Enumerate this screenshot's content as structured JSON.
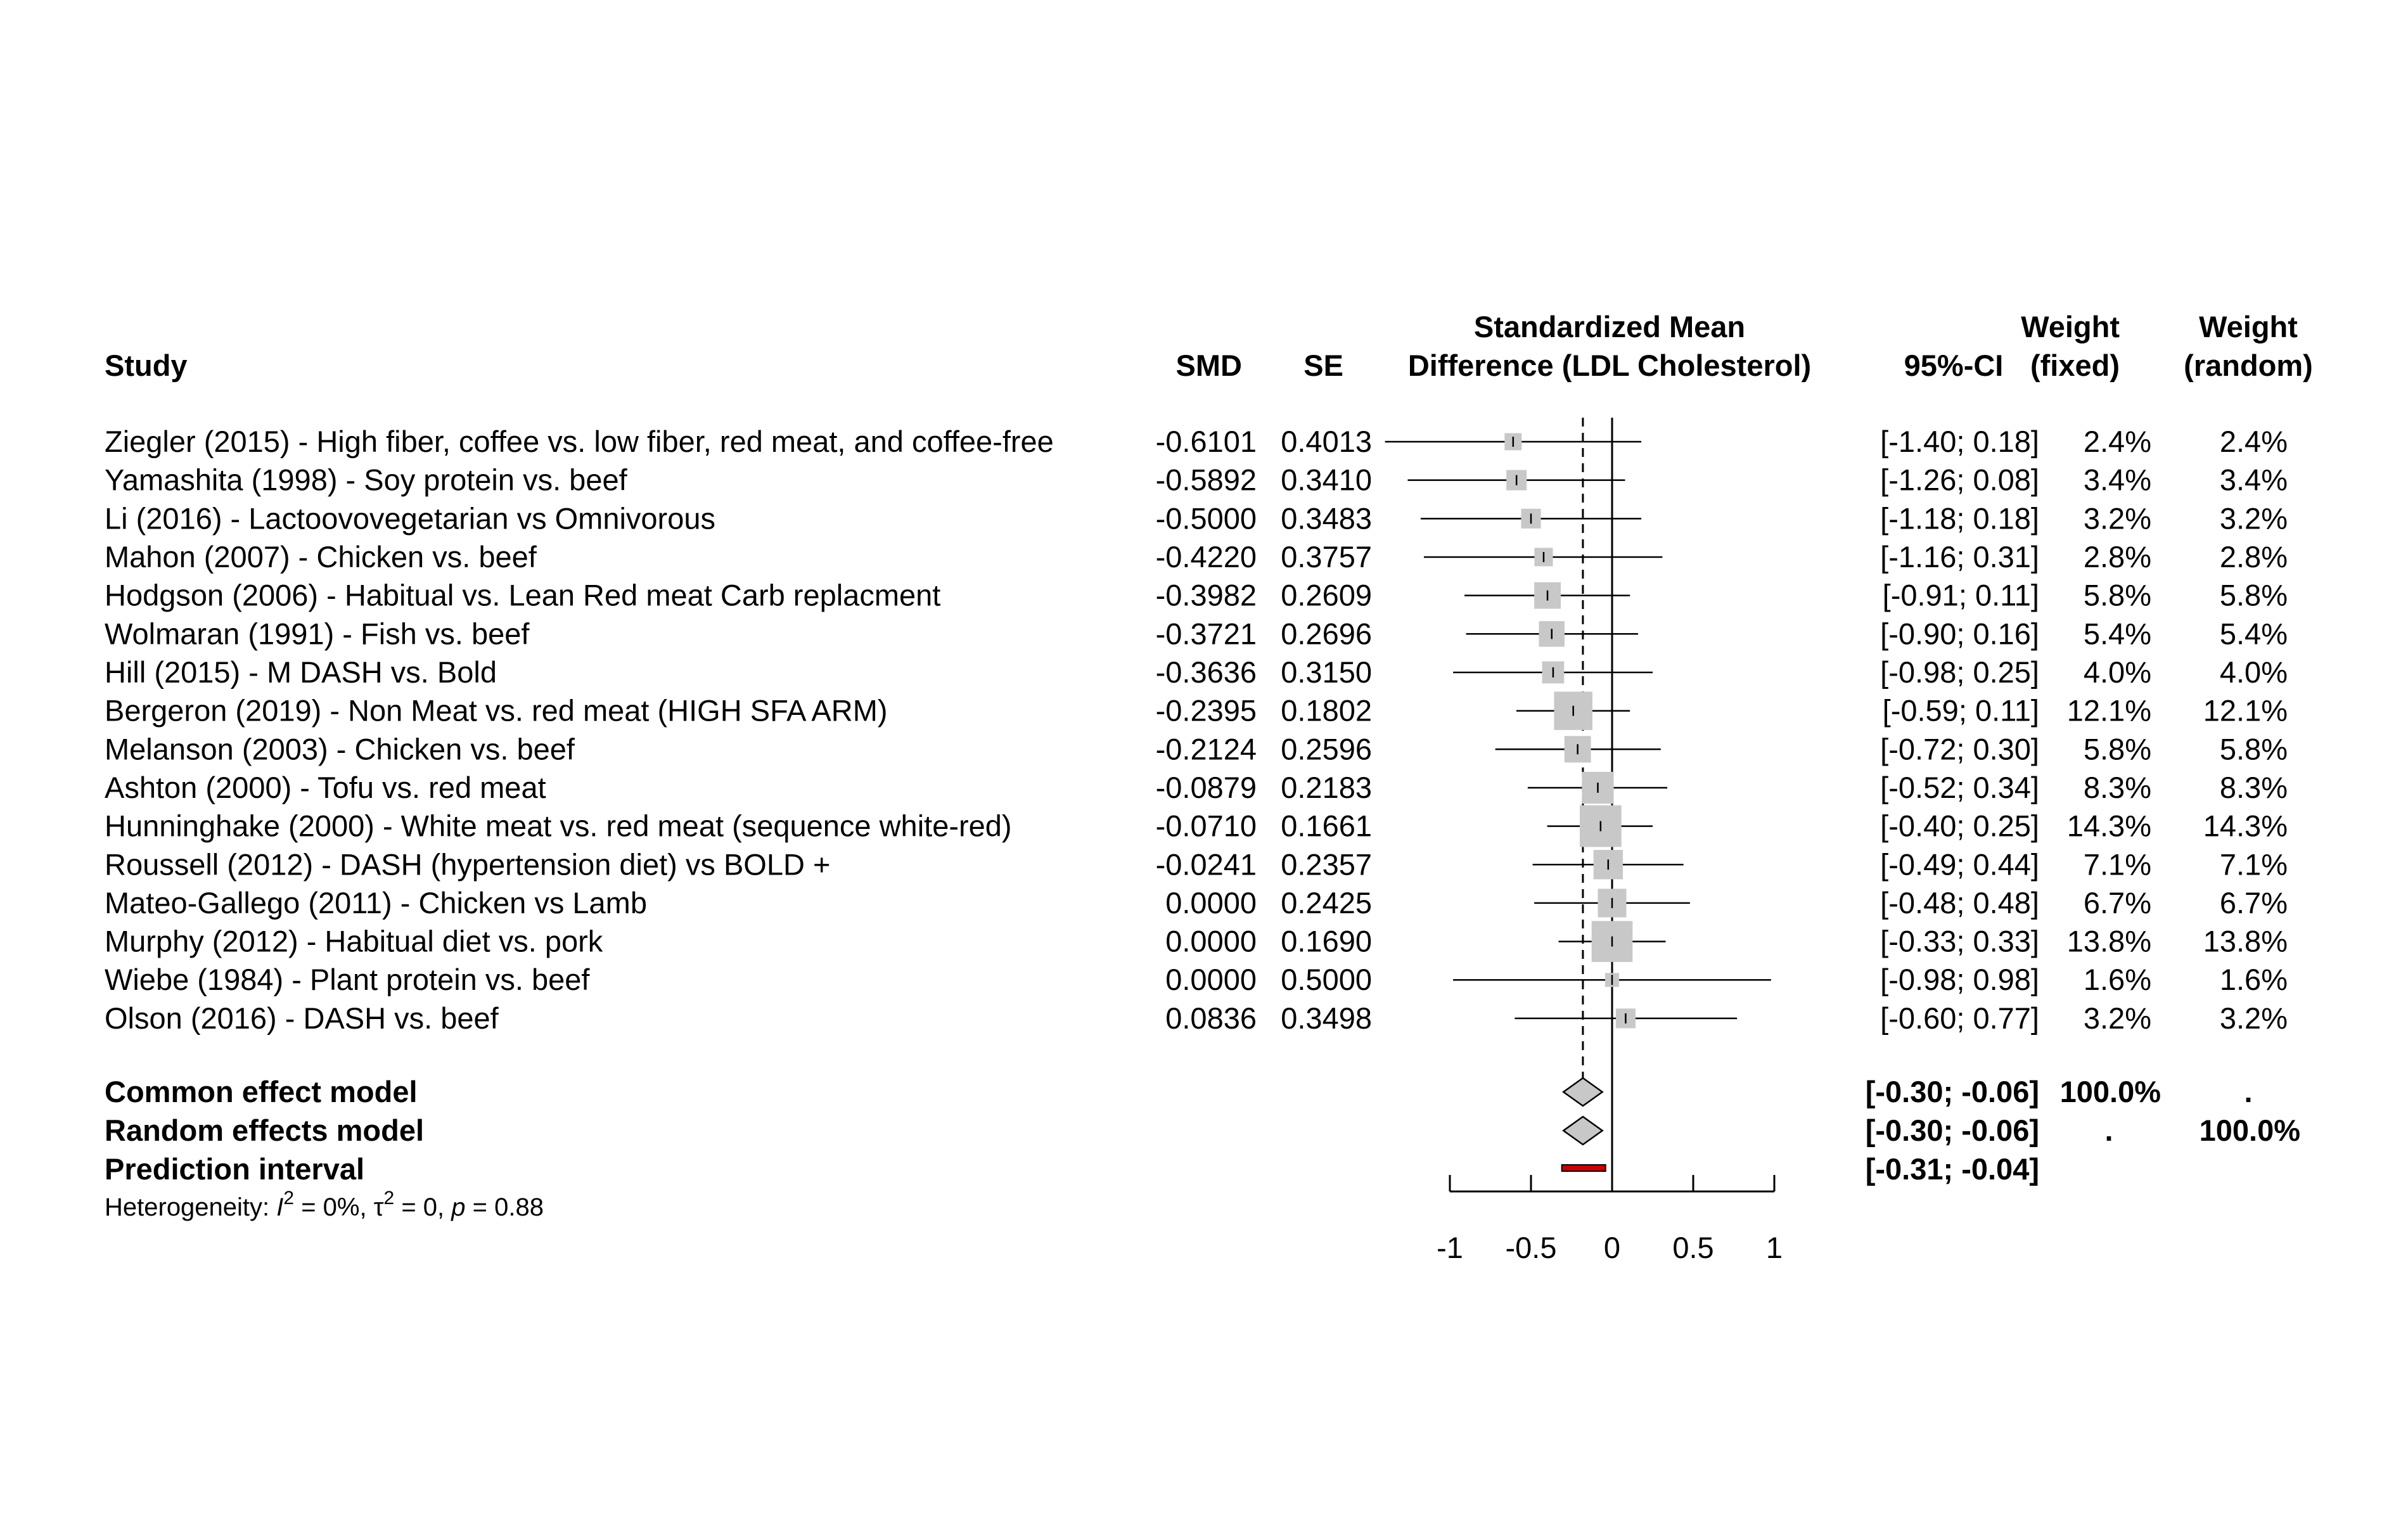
{
  "chart_data": {
    "type": "forest",
    "headers": {
      "study": "Study",
      "smd": "SMD",
      "se": "SE",
      "effect_line1": "Standardized Mean",
      "effect_line2": "Difference (LDL Cholesterol)",
      "ci": "95%-CI",
      "weight_fixed_line1": "Weight",
      "weight_fixed_line2": "(fixed)",
      "weight_random_line1": "Weight",
      "weight_random_line2": "(random)"
    },
    "studies": [
      {
        "label": "Ziegler (2015) - High fiber, coffee vs. low fiber, red meat, and coffee-free",
        "smd": -0.6101,
        "se": 0.4013,
        "smd_text": "-0.6101",
        "se_text": "0.4013",
        "ci_low": -1.4,
        "ci_high": 0.18,
        "ci_text": "[-1.40;  0.18]",
        "w_fixed": 2.4,
        "w_fixed_text": "2.4%",
        "w_random_text": "2.4%"
      },
      {
        "label": "Yamashita (1998) - Soy protein vs. beef",
        "smd": -0.5892,
        "se": 0.341,
        "smd_text": "-0.5892",
        "se_text": "0.3410",
        "ci_low": -1.26,
        "ci_high": 0.08,
        "ci_text": "[-1.26;  0.08]",
        "w_fixed": 3.4,
        "w_fixed_text": "3.4%",
        "w_random_text": "3.4%"
      },
      {
        "label": "Li (2016) - Lactoovovegetarian vs Omnivorous",
        "smd": -0.5,
        "se": 0.3483,
        "smd_text": "-0.5000",
        "se_text": "0.3483",
        "ci_low": -1.18,
        "ci_high": 0.18,
        "ci_text": "[-1.18;  0.18]",
        "w_fixed": 3.2,
        "w_fixed_text": "3.2%",
        "w_random_text": "3.2%"
      },
      {
        "label": "Mahon (2007) - Chicken vs. beef",
        "smd": -0.422,
        "se": 0.3757,
        "smd_text": "-0.4220",
        "se_text": "0.3757",
        "ci_low": -1.16,
        "ci_high": 0.31,
        "ci_text": "[-1.16;  0.31]",
        "w_fixed": 2.8,
        "w_fixed_text": "2.8%",
        "w_random_text": "2.8%"
      },
      {
        "label": "Hodgson (2006) - Habitual vs. Lean Red meat Carb replacment",
        "smd": -0.3982,
        "se": 0.2609,
        "smd_text": "-0.3982",
        "se_text": "0.2609",
        "ci_low": -0.91,
        "ci_high": 0.11,
        "ci_text": "[-0.91;  0.11]",
        "w_fixed": 5.8,
        "w_fixed_text": "5.8%",
        "w_random_text": "5.8%"
      },
      {
        "label": "Wolmaran (1991) - Fish vs. beef",
        "smd": -0.3721,
        "se": 0.2696,
        "smd_text": "-0.3721",
        "se_text": "0.2696",
        "ci_low": -0.9,
        "ci_high": 0.16,
        "ci_text": "[-0.90;  0.16]",
        "w_fixed": 5.4,
        "w_fixed_text": "5.4%",
        "w_random_text": "5.4%"
      },
      {
        "label": "Hill (2015) - M DASH vs. Bold",
        "smd": -0.3636,
        "se": 0.315,
        "smd_text": "-0.3636",
        "se_text": "0.3150",
        "ci_low": -0.98,
        "ci_high": 0.25,
        "ci_text": "[-0.98;  0.25]",
        "w_fixed": 4.0,
        "w_fixed_text": "4.0%",
        "w_random_text": "4.0%"
      },
      {
        "label": "Bergeron (2019) - Non Meat vs. red meat   (HIGH SFA ARM)",
        "smd": -0.2395,
        "se": 0.1802,
        "smd_text": "-0.2395",
        "se_text": "0.1802",
        "ci_low": -0.59,
        "ci_high": 0.11,
        "ci_text": "[-0.59;  0.11]",
        "w_fixed": 12.1,
        "w_fixed_text": "12.1%",
        "w_random_text": "12.1%"
      },
      {
        "label": "Melanson (2003) - Chicken vs. beef",
        "smd": -0.2124,
        "se": 0.2596,
        "smd_text": "-0.2124",
        "se_text": "0.2596",
        "ci_low": -0.72,
        "ci_high": 0.3,
        "ci_text": "[-0.72;  0.30]",
        "w_fixed": 5.8,
        "w_fixed_text": "5.8%",
        "w_random_text": "5.8%"
      },
      {
        "label": "Ashton (2000) - Tofu vs. red meat",
        "smd": -0.0879,
        "se": 0.2183,
        "smd_text": "-0.0879",
        "se_text": "0.2183",
        "ci_low": -0.52,
        "ci_high": 0.34,
        "ci_text": "[-0.52;  0.34]",
        "w_fixed": 8.3,
        "w_fixed_text": "8.3%",
        "w_random_text": "8.3%"
      },
      {
        "label": "Hunninghake (2000) - White meat vs. red meat (sequence white-red)",
        "smd": -0.071,
        "se": 0.1661,
        "smd_text": "-0.0710",
        "se_text": "0.1661",
        "ci_low": -0.4,
        "ci_high": 0.25,
        "ci_text": "[-0.40;  0.25]",
        "w_fixed": 14.3,
        "w_fixed_text": "14.3%",
        "w_random_text": "14.3%"
      },
      {
        "label": "Roussell (2012) - DASH (hypertension diet) vs BOLD +",
        "smd": -0.0241,
        "se": 0.2357,
        "smd_text": "-0.0241",
        "se_text": "0.2357",
        "ci_low": -0.49,
        "ci_high": 0.44,
        "ci_text": "[-0.49;  0.44]",
        "w_fixed": 7.1,
        "w_fixed_text": "7.1%",
        "w_random_text": "7.1%"
      },
      {
        "label": "Mateo-Gallego (2011) - Chicken vs Lamb",
        "smd": 0.0,
        "se": 0.2425,
        "smd_text": "0.0000",
        "se_text": "0.2425",
        "ci_low": -0.48,
        "ci_high": 0.48,
        "ci_text": "[-0.48;  0.48]",
        "w_fixed": 6.7,
        "w_fixed_text": "6.7%",
        "w_random_text": "6.7%"
      },
      {
        "label": "Murphy (2012) - Habitual diet vs. pork",
        "smd": 0.0,
        "se": 0.169,
        "smd_text": "0.0000",
        "se_text": "0.1690",
        "ci_low": -0.33,
        "ci_high": 0.33,
        "ci_text": "[-0.33;  0.33]",
        "w_fixed": 13.8,
        "w_fixed_text": "13.8%",
        "w_random_text": "13.8%"
      },
      {
        "label": "Wiebe (1984) - Plant protein vs. beef",
        "smd": 0.0,
        "se": 0.5,
        "smd_text": "0.0000",
        "se_text": "0.5000",
        "ci_low": -0.98,
        "ci_high": 0.98,
        "ci_text": "[-0.98;  0.98]",
        "w_fixed": 1.6,
        "w_fixed_text": "1.6%",
        "w_random_text": "1.6%"
      },
      {
        "label": "Olson (2016) - DASH vs. beef",
        "smd": 0.0836,
        "se": 0.3498,
        "smd_text": "0.0836",
        "se_text": "0.3498",
        "ci_low": -0.6,
        "ci_high": 0.77,
        "ci_text": "[-0.60;  0.77]",
        "w_fixed": 3.2,
        "w_fixed_text": "3.2%",
        "w_random_text": "3.2%"
      }
    ],
    "common_effect": {
      "label": "Common effect model",
      "estimate": -0.18,
      "ci_low": -0.3,
      "ci_high": -0.06,
      "ci_text": "[-0.30; -0.06]",
      "w_fixed_text": "100.0%",
      "w_random_text": "."
    },
    "random_effects": {
      "label": "Random effects model",
      "estimate": -0.18,
      "ci_low": -0.3,
      "ci_high": -0.06,
      "ci_text": "[-0.30; -0.06]",
      "w_fixed_text": ".",
      "w_random_text": "100.0%"
    },
    "prediction_interval": {
      "label": "Prediction interval",
      "ci_low": -0.31,
      "ci_high": -0.04,
      "ci_text": "[-0.31; -0.04]"
    },
    "heterogeneity": {
      "prefix": "Heterogeneity: ",
      "i2_symbol": "I",
      "i2_value": " = 0%, ",
      "tau2_symbol": "τ",
      "tau2_value": " = 0, ",
      "p_symbol": "p",
      "p_value": " = 0.88",
      "sup": "2"
    },
    "x_axis": {
      "range": [
        -1,
        1
      ],
      "ticks": [
        -1,
        -0.5,
        0,
        0.5,
        1
      ],
      "tick_labels": [
        "-1",
        "-0.5",
        "0",
        "0.5",
        "1"
      ]
    },
    "reference_line": 0,
    "summary_line": -0.18,
    "colors": {
      "box": "#c8c8c8",
      "diamond": "#c8c8c8",
      "prediction": "#cc0000",
      "line": "#000000"
    }
  }
}
